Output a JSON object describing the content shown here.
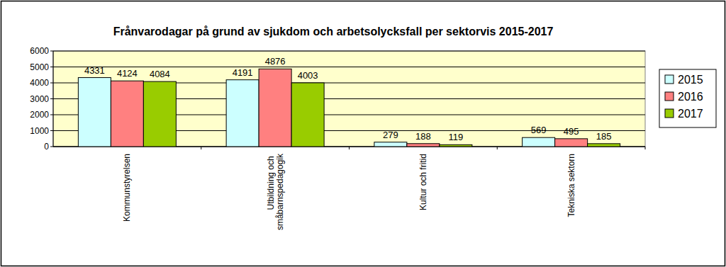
{
  "chart_data": {
    "type": "bar",
    "title": "Frånvarodagar på grund av sjukdom och arbetsolycksfall per sektorvis 2015-2017",
    "categories": [
      "Kommunstyrelsen",
      "Utbildning och småbarnspedagogik",
      "Kultur och fritid",
      "Tekniska sektorn"
    ],
    "series": [
      {
        "name": "2015",
        "color": "#ccffff",
        "values": [
          4331,
          4191,
          279,
          569
        ]
      },
      {
        "name": "2016",
        "color": "#ff8080",
        "values": [
          4124,
          4876,
          188,
          495
        ]
      },
      {
        "name": "2017",
        "color": "#99cc00",
        "values": [
          4084,
          4003,
          119,
          185
        ]
      }
    ],
    "ylim": [
      0,
      6000
    ],
    "yticks": [
      0,
      1000,
      2000,
      3000,
      4000,
      5000,
      6000
    ],
    "grid": true,
    "legend": "right",
    "data_labels": true
  }
}
